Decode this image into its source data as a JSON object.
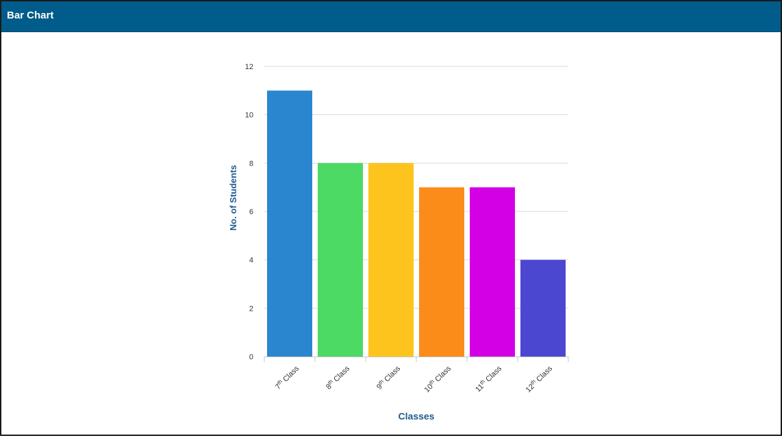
{
  "panel": {
    "title": "Bar Chart"
  },
  "colors": {
    "header_bg": "#005c8a",
    "axis_title": "#1f5a8c",
    "grid": "#d9d9d9",
    "tick_label": "#333333"
  },
  "chart_data": {
    "type": "bar",
    "categories": [
      {
        "num": "7",
        "sup": "th",
        "rest": " Class"
      },
      {
        "num": "8",
        "sup": "th",
        "rest": " Class"
      },
      {
        "num": "9",
        "sup": "th",
        "rest": " Class"
      },
      {
        "num": "10",
        "sup": "th",
        "rest": " Class"
      },
      {
        "num": "11",
        "sup": "th",
        "rest": " Class"
      },
      {
        "num": "12",
        "sup": "th",
        "rest": " Class"
      }
    ],
    "values": [
      11,
      8,
      8,
      7,
      7,
      4
    ],
    "bar_colors": [
      "#2a87cf",
      "#4cd964",
      "#fdc41e",
      "#fb8c1a",
      "#d300e6",
      "#4b47d1"
    ],
    "xlabel": "Classes",
    "ylabel": "No. of Students",
    "ylim": [
      0,
      12
    ],
    "yticks": [
      0,
      2,
      4,
      6,
      8,
      10,
      12
    ],
    "grid": true,
    "legend": "none"
  }
}
